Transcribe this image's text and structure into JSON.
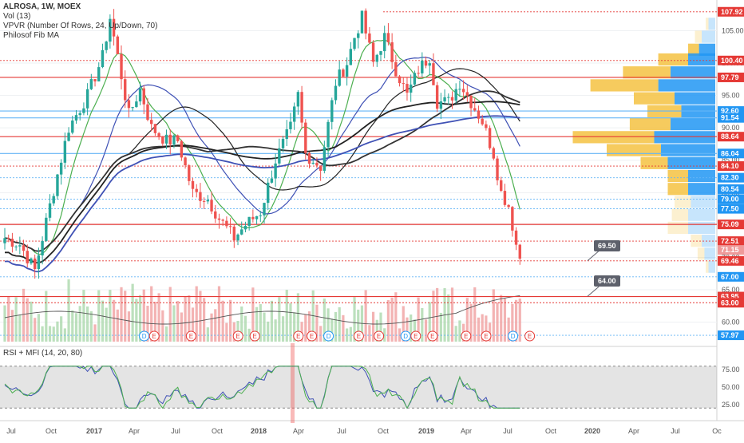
{
  "header": {
    "title": "ALROSA, 1W, MOEX",
    "indicators": [
      "Vol (13)",
      "VPVR (Number Of Rows, 24, Up/Down, 70)",
      "Philosof Fib MA"
    ]
  },
  "rsi_panel": {
    "title": "RSI + MFI (14, 20, 80)"
  },
  "callouts": [
    {
      "label": "69.50",
      "price": 69.5
    },
    {
      "label": "64.00",
      "price": 64.0
    }
  ],
  "colors": {
    "up": "#26a69a",
    "down": "#ef5350",
    "ma_green": "#4caf50",
    "ma_blue": "#3f51b5",
    "ma_black": "#222222",
    "vp_up": "#f5c242",
    "vp_down": "#2196f3",
    "red_line": "#e53935",
    "blue_line": "#64b5f6"
  },
  "chart_data": {
    "type": "candlestick",
    "title": "ALROSA, 1W, MOEX",
    "price_axis": {
      "range": [
        56.5,
        109
      ],
      "ticks": [
        60.0,
        65.0,
        70.0,
        75.0,
        80.0,
        85.0,
        90.0,
        95.0,
        100.0,
        105.0
      ],
      "labels": [
        {
          "text": "107.92",
          "value": 107.92,
          "color": "#e53935"
        },
        {
          "text": "100.40",
          "value": 100.4,
          "color": "#e53935"
        },
        {
          "text": "97.79",
          "value": 97.79,
          "color": "#e53935"
        },
        {
          "text": "92.60",
          "value": 92.6,
          "color": "#2196f3"
        },
        {
          "text": "91.54",
          "value": 91.54,
          "color": "#2196f3"
        },
        {
          "text": "88.64",
          "value": 88.64,
          "color": "#e53935"
        },
        {
          "text": "86.04",
          "value": 86.04,
          "color": "#2196f3"
        },
        {
          "text": "84.10",
          "value": 84.1,
          "color": "#e53935"
        },
        {
          "text": "82.30",
          "value": 82.3,
          "color": "#2196f3"
        },
        {
          "text": "80.54",
          "value": 80.54,
          "color": "#2196f3"
        },
        {
          "text": "79.00",
          "value": 79.0,
          "color": "#2196f3"
        },
        {
          "text": "77.50",
          "value": 77.5,
          "color": "#2196f3"
        },
        {
          "text": "75.09",
          "value": 75.09,
          "color": "#e53935"
        },
        {
          "text": "72.51",
          "value": 72.51,
          "color": "#e53935"
        },
        {
          "text": "71.15",
          "value": 71.15,
          "color": "#ef9a9a"
        },
        {
          "text": "69.46",
          "value": 69.46,
          "color": "#e53935"
        },
        {
          "text": "67.00",
          "value": 67.0,
          "color": "#2196f3"
        },
        {
          "text": "63.95",
          "value": 63.95,
          "color": "#e53935"
        },
        {
          "text": "63.00",
          "value": 63.0,
          "color": "#e53935"
        },
        {
          "text": "57.97",
          "value": 57.97,
          "color": "#2196f3"
        }
      ],
      "level_lines": [
        {
          "value": 107.92,
          "style": "dotted",
          "color": "#e53935"
        },
        {
          "value": 100.4,
          "style": "dotted",
          "color": "#e53935"
        },
        {
          "value": 97.79,
          "style": "solid",
          "color": "#e53935"
        },
        {
          "value": 92.6,
          "style": "solid",
          "color": "#64b5f6"
        },
        {
          "value": 91.54,
          "style": "solid",
          "color": "#64b5f6"
        },
        {
          "value": 88.64,
          "style": "solid",
          "color": "#e53935"
        },
        {
          "value": 86.04,
          "style": "solid",
          "color": "#64b5f6"
        },
        {
          "value": 84.1,
          "style": "dotted",
          "color": "#e53935"
        },
        {
          "value": 82.3,
          "style": "dotted",
          "color": "#64b5f6"
        },
        {
          "value": 79.0,
          "style": "dotted",
          "color": "#64b5f6"
        },
        {
          "value": 77.5,
          "style": "dotted",
          "color": "#64b5f6"
        },
        {
          "value": 75.09,
          "style": "solid",
          "color": "#e53935"
        },
        {
          "value": 72.51,
          "style": "dotted",
          "color": "#e53935"
        },
        {
          "value": 69.46,
          "style": "dotted",
          "color": "#e53935"
        },
        {
          "value": 67.0,
          "style": "dotted",
          "color": "#64b5f6"
        },
        {
          "value": 63.95,
          "style": "solid",
          "color": "#e53935"
        },
        {
          "value": 63.0,
          "style": "dotted",
          "color": "#e53935"
        },
        {
          "value": 57.97,
          "style": "dotted",
          "color": "#64b5f6"
        }
      ]
    },
    "time_axis": {
      "labels": [
        "Jul",
        "Oct",
        "2017",
        "Apr",
        "Jul",
        "Oct",
        "2018",
        "Apr",
        "Jul",
        "Oct",
        "2019",
        "Apr",
        "Jul",
        "Oct",
        "2020",
        "Apr",
        "Jul",
        "Oc"
      ],
      "bold": [
        "2017",
        "2018",
        "2019",
        "2020"
      ]
    },
    "price_anchors": [
      [
        0,
        73
      ],
      [
        4,
        72
      ],
      [
        8,
        68
      ],
      [
        12,
        78
      ],
      [
        17,
        90
      ],
      [
        22,
        95
      ],
      [
        26,
        101
      ],
      [
        28,
        107
      ],
      [
        30,
        101
      ],
      [
        33,
        92
      ],
      [
        36,
        96
      ],
      [
        39,
        90
      ],
      [
        43,
        88
      ],
      [
        46,
        88
      ],
      [
        50,
        80
      ],
      [
        54,
        79
      ],
      [
        57,
        76
      ],
      [
        61,
        73
      ],
      [
        64,
        75
      ],
      [
        68,
        77
      ],
      [
        72,
        85
      ],
      [
        76,
        90
      ],
      [
        78,
        95
      ],
      [
        80,
        86
      ],
      [
        84,
        84
      ],
      [
        88,
        97
      ],
      [
        91,
        100
      ],
      [
        93,
        104
      ],
      [
        95,
        107
      ],
      [
        98,
        100
      ],
      [
        101,
        104
      ],
      [
        104,
        99
      ],
      [
        107,
        95
      ],
      [
        110,
        99
      ],
      [
        113,
        101
      ],
      [
        115,
        94
      ],
      [
        118,
        94
      ],
      [
        121,
        97
      ],
      [
        124,
        94
      ],
      [
        127,
        91
      ],
      [
        130,
        86
      ],
      [
        132,
        80
      ],
      [
        134,
        78
      ],
      [
        136,
        72
      ],
      [
        137,
        70
      ]
    ],
    "moving_averages": [
      {
        "color": "#4caf50",
        "period": 8
      },
      {
        "color": "#3f51b5",
        "period": 21
      },
      {
        "color": "#222222",
        "period": 34
      },
      {
        "color": "#333333",
        "period": 55
      },
      {
        "color": "#222222",
        "period": 89
      },
      {
        "color": "#3f51b5",
        "period": 144
      }
    ],
    "volume_profile": [
      {
        "price": 106,
        "up": 0.02,
        "down": 0.05
      },
      {
        "price": 104,
        "up": 0.05,
        "down": 0.1
      },
      {
        "price": 102,
        "up": 0.08,
        "down": 0.12
      },
      {
        "price": 100.5,
        "up": 0.22,
        "down": 0.2
      },
      {
        "price": 98.5,
        "up": 0.35,
        "down": 0.33
      },
      {
        "price": 96.5,
        "up": 0.5,
        "down": 0.42
      },
      {
        "price": 94.5,
        "up": 0.3,
        "down": 0.3
      },
      {
        "price": 92.5,
        "up": 0.25,
        "down": 0.25
      },
      {
        "price": 90.5,
        "up": 0.3,
        "down": 0.33
      },
      {
        "price": 88.5,
        "up": 0.6,
        "down": 0.45
      },
      {
        "price": 86.5,
        "up": 0.4,
        "down": 0.4
      },
      {
        "price": 84.5,
        "up": 0.2,
        "down": 0.35
      },
      {
        "price": 82.5,
        "up": 0.15,
        "down": 0.2
      },
      {
        "price": 80.5,
        "up": 0.15,
        "down": 0.2
      },
      {
        "price": 78.5,
        "up": 0.12,
        "down": 0.18
      },
      {
        "price": 76.5,
        "up": 0.12,
        "down": 0.2
      },
      {
        "price": 74.5,
        "up": 0.15,
        "down": 0.2
      },
      {
        "price": 72.5,
        "up": 0.08,
        "down": 0.1
      },
      {
        "price": 70.5,
        "up": 0.05,
        "down": 0.08
      },
      {
        "price": 68.5,
        "up": 0.02,
        "down": 0.05
      }
    ],
    "event_markers": [
      {
        "x": 0.43,
        "type": "D"
      },
      {
        "x": 0.46,
        "type": "E"
      },
      {
        "x": 0.57,
        "type": "E"
      },
      {
        "x": 0.71,
        "type": "E"
      },
      {
        "x": 0.76,
        "type": "E"
      },
      {
        "x": 0.89,
        "type": "E"
      },
      {
        "x": 0.93,
        "type": "E"
      },
      {
        "x": 0.98,
        "type": "D"
      },
      {
        "x": 1.07,
        "type": "E"
      },
      {
        "x": 1.13,
        "type": "E"
      },
      {
        "x": 1.21,
        "type": "D"
      },
      {
        "x": 1.24,
        "type": "E"
      },
      {
        "x": 1.29,
        "type": "E"
      },
      {
        "x": 1.39,
        "type": "E"
      },
      {
        "x": 1.45,
        "type": "E"
      },
      {
        "x": 1.53,
        "type": "D"
      },
      {
        "x": 1.58,
        "type": "E"
      }
    ],
    "rsi_axis": {
      "ticks": [
        25.0,
        50.0,
        75.0
      ],
      "overbought": 80,
      "oversold": 20
    }
  }
}
